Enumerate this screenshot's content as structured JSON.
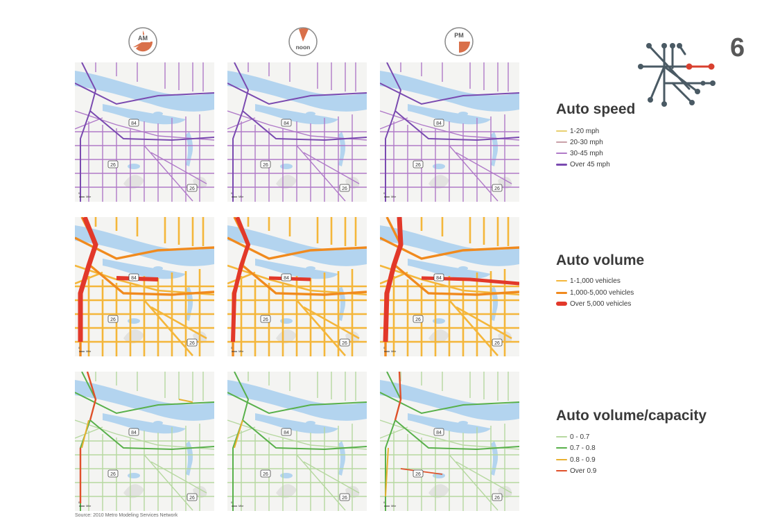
{
  "clocks": [
    {
      "label": "AM"
    },
    {
      "label": "noon"
    },
    {
      "label": "PM"
    }
  ],
  "chapter_number": "6",
  "map_labels": {
    "route_84": "84",
    "route_26": "26",
    "route_26_east": "26",
    "scale_zero": "0",
    "scale_unit": "Mile"
  },
  "legends": {
    "speed": {
      "title": "Auto speed",
      "items": [
        {
          "label": "1-20 mph",
          "color": "#e8d070"
        },
        {
          "label": "20-30 mph",
          "color": "#c9a0a8"
        },
        {
          "label": "30-45 mph",
          "color": "#b07ac8"
        },
        {
          "label": "Over 45 mph",
          "color": "#7a4ab0"
        }
      ]
    },
    "volume": {
      "title": "Auto volume",
      "items": [
        {
          "label": "1-1,000 vehicles",
          "color": "#f4b63a"
        },
        {
          "label": "1,000-5,000 vehicles",
          "color": "#f08a1e"
        },
        {
          "label": "Over 5,000 vehicles",
          "color": "#e2382a"
        }
      ]
    },
    "capacity": {
      "title": "Auto volume/capacity",
      "items": [
        {
          "label": "0 - 0.7",
          "color": "#b6d8a0"
        },
        {
          "label": "0.7 - 0.8",
          "color": "#58b04a"
        },
        {
          "label": "0.8 - 0.9",
          "color": "#e8b030"
        },
        {
          "label": "Over 0.9",
          "color": "#e0502a"
        }
      ]
    }
  },
  "source": "Source: 2010 Metro Modeling Services Network",
  "colors": {
    "river": "#b3d4ef",
    "land": "#f4f4f2",
    "clock_wedge": "#d9704a",
    "transit_red": "#d8402f",
    "transit_gray": "#4a5a64"
  }
}
